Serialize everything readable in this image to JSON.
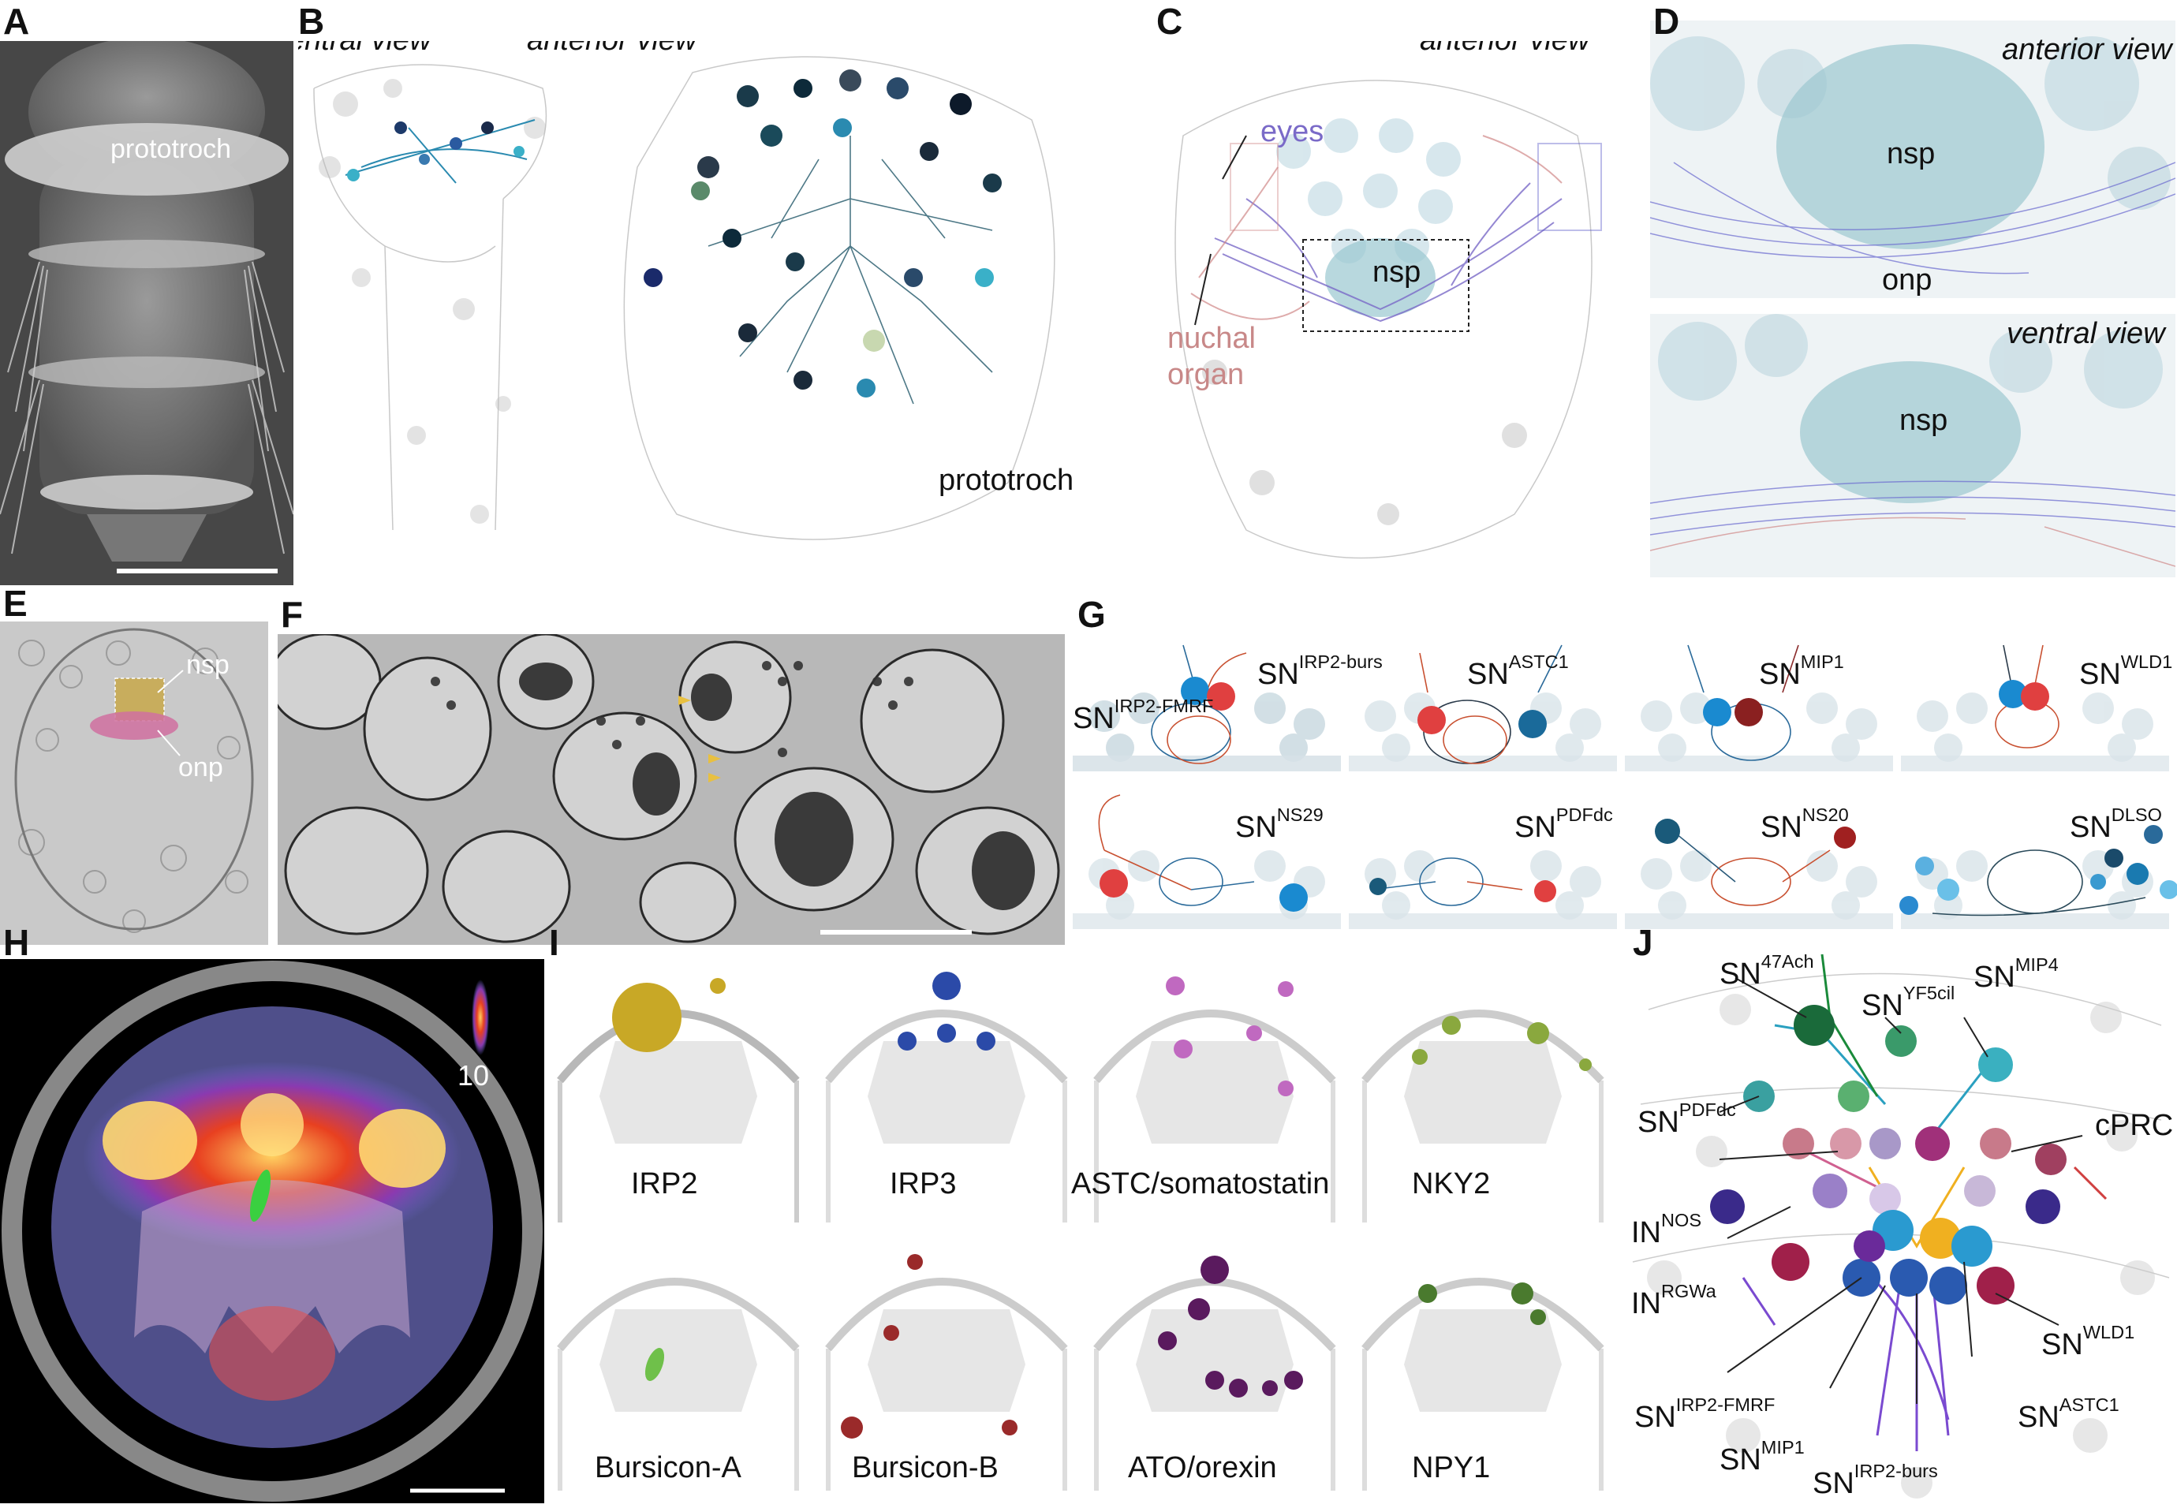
{
  "panel_labels": {
    "A": "A",
    "B": "B",
    "C": "C",
    "D": "D",
    "E": "E",
    "F": "F",
    "G": "G",
    "H": "H",
    "I": "I",
    "J": "J"
  },
  "panelA": {
    "label": "prototroch"
  },
  "panelB": {
    "view1": "ventral view",
    "view2": "anterior view",
    "label": "prototroch"
  },
  "panelC": {
    "view": "anterior view",
    "eyes": "eyes",
    "nsp": "nsp",
    "nuchal": "nuchal",
    "organ": "organ"
  },
  "panelD": {
    "top_view": "anterior view",
    "top_nsp": "nsp",
    "top_onp": "onp",
    "bottom_view": "ventral view",
    "bottom_nsp": "nsp"
  },
  "panelE": {
    "nsp": "nsp",
    "onp": "onp"
  },
  "panelG": {
    "sn": "SN",
    "cells": [
      {
        "base": "SN",
        "sup": "IRP2-burs",
        "base2": "SN",
        "sup2": "IRP2-FMRF"
      },
      {
        "base": "SN",
        "sup": "ASTC1"
      },
      {
        "base": "SN",
        "sup": "MIP1"
      },
      {
        "base": "SN",
        "sup": "WLD1"
      },
      {
        "base": "SN",
        "sup": "NS29"
      },
      {
        "base": "SN",
        "sup": "PDFdc"
      },
      {
        "base": "SN",
        "sup": "NS20"
      },
      {
        "base": "SN",
        "sup": "DLSO"
      }
    ]
  },
  "panelH": {
    "scale_max": "10"
  },
  "panelI": {
    "labels": [
      "IRP2",
      "IRP3",
      "ASTC/somatostatin",
      "NKY2",
      "Bursicon-A",
      "Bursicon-B",
      "ATO/orexin",
      "NPY1"
    ],
    "colors": [
      "#c8a826",
      "#2b4aa8",
      "#c069c0",
      "#8aa83e",
      "#6fc04a",
      "#9a2a2a",
      "#5a1a5e",
      "#4a7a2e"
    ]
  },
  "panelJ": {
    "labels": [
      {
        "base": "SN",
        "sup": "47Ach"
      },
      {
        "base": "SN",
        "sup": "YF5cil"
      },
      {
        "base": "SN",
        "sup": "MIP4"
      },
      {
        "base": "SN",
        "sup": "PDFdc"
      },
      {
        "base": "cPRC",
        "sup": ""
      },
      {
        "base": "IN",
        "sup": "NOS"
      },
      {
        "base": "IN",
        "sup": "RGWa"
      },
      {
        "base": "SN",
        "sup": "WLD1"
      },
      {
        "base": "SN",
        "sup": "IRP2-FMRF"
      },
      {
        "base": "SN",
        "sup": "ASTC1"
      },
      {
        "base": "SN",
        "sup": "MIP1"
      },
      {
        "base": "SN",
        "sup": "IRP2-burs"
      }
    ]
  }
}
